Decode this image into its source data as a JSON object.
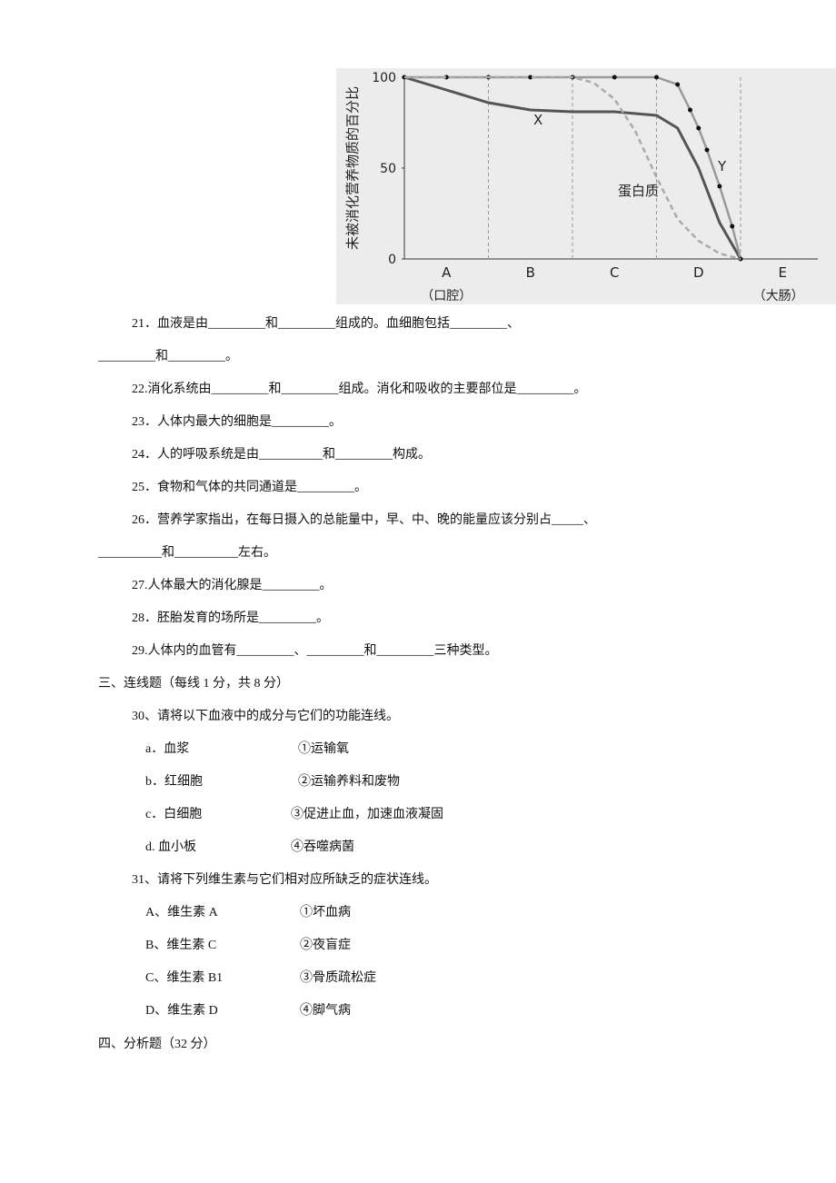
{
  "figure": {
    "y_axis_label": "未被消化营养物质的百分比",
    "ylim": [
      0,
      100
    ],
    "yticks": [
      0,
      50,
      100
    ],
    "regions": [
      "A",
      "B",
      "C",
      "D",
      "E"
    ],
    "region_notes": [
      "（口腔）",
      "（大肠）"
    ],
    "series": [
      {
        "name": "X",
        "color": "#555555",
        "style": "solid",
        "x": [
          0,
          0.5,
          1,
          1.5,
          2,
          2.5,
          3,
          3.25,
          3.5,
          3.75,
          4
        ],
        "values": [
          100,
          93,
          86,
          82,
          81,
          81,
          79,
          72,
          50,
          20,
          0
        ]
      },
      {
        "name": "Y",
        "color": "#999999",
        "style": "dots",
        "x": [
          0,
          0.5,
          1,
          1.5,
          2,
          2.5,
          3,
          3.25,
          3.4,
          3.5,
          3.6,
          3.75,
          3.9,
          4
        ],
        "values": [
          100,
          100,
          100,
          100,
          100,
          100,
          100,
          96,
          82,
          72,
          60,
          40,
          18,
          0
        ]
      },
      {
        "name": "蛋白质",
        "color": "#aaaaaa",
        "style": "dashed",
        "x": [
          0,
          1,
          2,
          2.25,
          2.5,
          2.75,
          3,
          3.25,
          3.5,
          3.75,
          4
        ],
        "values": [
          100,
          100,
          100,
          97,
          88,
          70,
          45,
          22,
          10,
          3,
          0
        ]
      }
    ]
  },
  "q21": [
    "21．血液是由_________和_________组成的。血细胞包括_________、",
    "_________和_________。"
  ],
  "q22": "22.消化系统由_________和_________组成。消化和吸收的主要部位是_________。",
  "q23": "23．人体内最大的细胞是_________。",
  "q24": "24．人的呼吸系统是由__________和_________构成。",
  "q25": "25．食物和气体的共同通道是_________。",
  "q26": [
    "26．营养学家指出，在每日摄入的总能量中，早、中、晚的能量应该分别占_____、",
    "__________和__________左右。"
  ],
  "q27": "27.人体最大的消化腺是_________。",
  "q28": "28．胚胎发育的场所是_________。",
  "q29": "29.人体内的血管有_________、_________和_________三种类型。",
  "section3": "三、连线题（每线 1 分，共 8 分）",
  "q30": {
    "prompt": "30、请将以下血液中的成分与它们的功能连线。",
    "left": [
      "a．血浆",
      "b．红细胞",
      "c．白细胞",
      "d. 血小板"
    ],
    "right": [
      "①运输氧",
      "②运输养料和废物",
      "③促进止血，加速血液凝固",
      "④吞噬病菌"
    ]
  },
  "q31": {
    "prompt": "31、请将下列维生素与它们相对应所缺乏的症状连线。",
    "left": [
      "A、维生素 A",
      "B、维生素 C",
      "C、维生素 B1",
      "D、维生素 D"
    ],
    "right": [
      "①坏血病",
      "②夜盲症",
      "③骨质疏松症",
      "④脚气病"
    ]
  },
  "section4": "四、分析题（32 分）"
}
